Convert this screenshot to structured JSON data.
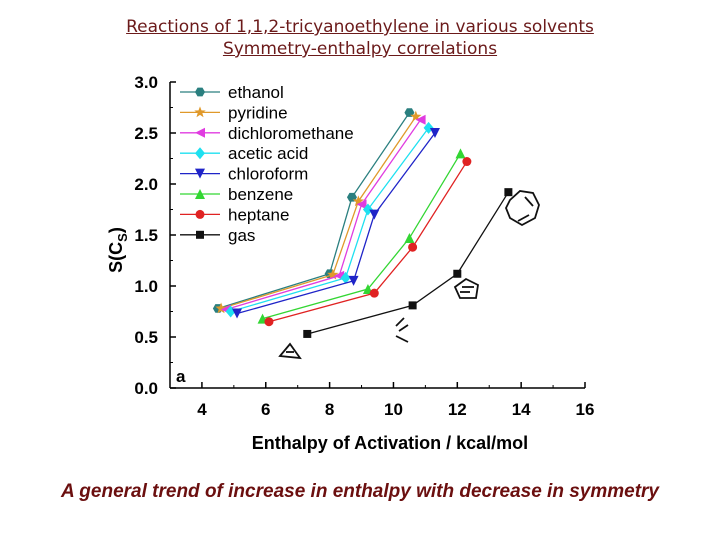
{
  "slide": {
    "title_line1": "Reactions of 1,1,2-tricyanoethylene in various solvents",
    "title_line2": "Symmetry-enthalpy correlations",
    "caption": "A  general trend of increase in enthalpy with decrease in symmetry"
  },
  "chart_data": {
    "type": "line",
    "xlabel": "Enthalpy of Activation / kcal/mol",
    "ylabel": "S(C",
    "ylabel_sub": "S",
    "ylabel_close": ")",
    "panel_label": "a",
    "xlim": [
      3,
      16
    ],
    "ylim": [
      0,
      3
    ],
    "xticks": [
      4,
      6,
      8,
      10,
      12,
      14,
      16
    ],
    "yticks": [
      0.0,
      0.5,
      1.0,
      1.5,
      2.0,
      2.5,
      3.0
    ],
    "legend_position": "top-left",
    "series": [
      {
        "name": "ethanol",
        "color": "#2a7f7f",
        "marker": "hexagon",
        "x": [
          4.5,
          8.0,
          8.7,
          10.5
        ],
        "y": [
          0.78,
          1.12,
          1.87,
          2.7
        ]
      },
      {
        "name": "pyridine",
        "color": "#e0992a",
        "marker": "star",
        "x": [
          4.6,
          8.1,
          8.9,
          10.7
        ],
        "y": [
          0.78,
          1.11,
          1.83,
          2.66
        ]
      },
      {
        "name": "dichloromethane",
        "color": "#e03ce0",
        "marker": "triangle-left",
        "x": [
          4.75,
          8.3,
          9.0,
          10.85
        ],
        "y": [
          0.77,
          1.1,
          1.8,
          2.63
        ]
      },
      {
        "name": "acetic acid",
        "color": "#1ee0f0",
        "marker": "diamond",
        "x": [
          4.9,
          8.5,
          9.2,
          11.1
        ],
        "y": [
          0.75,
          1.08,
          1.75,
          2.55
        ]
      },
      {
        "name": "chloroform",
        "color": "#1f24c8",
        "marker": "triangle-down",
        "x": [
          5.1,
          8.75,
          9.4,
          11.3
        ],
        "y": [
          0.73,
          1.05,
          1.7,
          2.5
        ]
      },
      {
        "name": "benzene",
        "color": "#33d633",
        "marker": "triangle-up",
        "x": [
          5.9,
          9.2,
          10.5,
          12.1
        ],
        "y": [
          0.68,
          0.97,
          1.47,
          2.3
        ]
      },
      {
        "name": "heptane",
        "color": "#e02222",
        "marker": "circle",
        "x": [
          6.1,
          9.4,
          10.6,
          12.3
        ],
        "y": [
          0.65,
          0.93,
          1.38,
          2.22
        ]
      },
      {
        "name": "gas",
        "color": "#111111",
        "marker": "square",
        "x": [
          7.3,
          10.6,
          12.0,
          13.6
        ],
        "y": [
          0.53,
          0.81,
          1.12,
          1.92
        ]
      }
    ]
  },
  "icons": [
    "cyclopropene-ring-icon",
    "alkene-icon",
    "cyclopentadiene-ring-icon",
    "cycloheptatriene-ring-icon"
  ]
}
